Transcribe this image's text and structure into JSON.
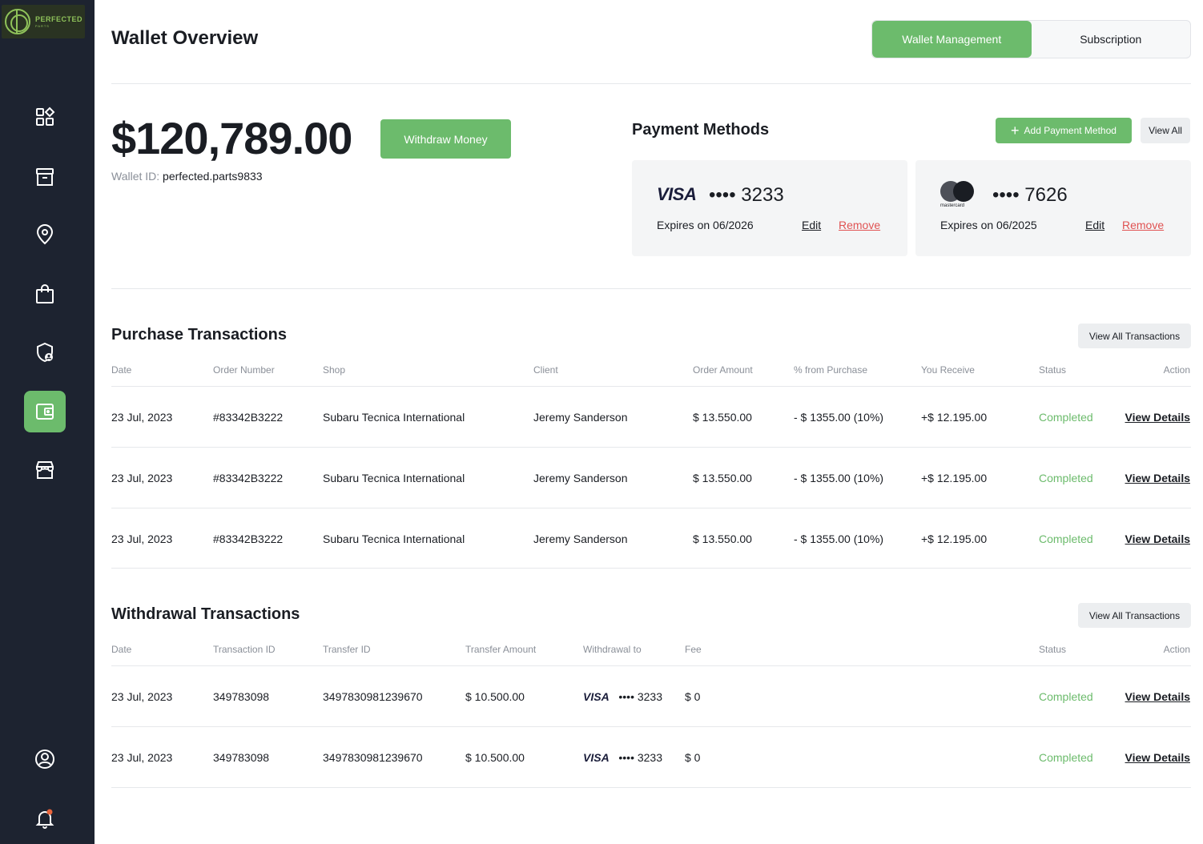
{
  "logo": {
    "line1": "PERFECTED",
    "line2": "PARTS"
  },
  "sidebar": {
    "items": [
      {
        "name": "dashboard",
        "icon": "dashboard-icon"
      },
      {
        "name": "archive",
        "icon": "archive-box-icon"
      },
      {
        "name": "location",
        "icon": "map-pin-icon"
      },
      {
        "name": "orders",
        "icon": "shopping-bag-icon"
      },
      {
        "name": "security",
        "icon": "shield-user-icon"
      },
      {
        "name": "wallet",
        "icon": "wallet-icon",
        "active": true
      },
      {
        "name": "store",
        "icon": "storefront-icon"
      },
      {
        "name": "profile",
        "icon": "user-circle-icon"
      },
      {
        "name": "notifications",
        "icon": "bell-icon"
      }
    ]
  },
  "header": {
    "title": "Wallet Overview",
    "tabs": [
      {
        "label": "Wallet Management",
        "active": true
      },
      {
        "label": "Subscription"
      }
    ]
  },
  "balance": {
    "amount": "$120,789.00",
    "withdraw_label": "Withdraw Money",
    "wallet_id_label": "Wallet ID:",
    "wallet_id": "perfected.parts9833"
  },
  "payment_methods": {
    "title": "Payment Methods",
    "add_label": "Add Payment Method",
    "view_all_label": "View All",
    "cards": [
      {
        "brand": "VISA",
        "number": "•••• 3233",
        "expires": "Expires on 06/2026",
        "edit": "Edit",
        "remove": "Remove"
      },
      {
        "brand": "mastercard",
        "number": "•••• 7626",
        "expires": "Expires on 06/2025",
        "edit": "Edit",
        "remove": "Remove"
      }
    ]
  },
  "purchase": {
    "title": "Purchase Transactions",
    "view_all_label": "View All Transactions",
    "columns": [
      "Date",
      "Order Number",
      "Shop",
      "Client",
      "Order Amount",
      "% from Purchase",
      "You Receive",
      "Status",
      "Action"
    ],
    "rows": [
      [
        "23 Jul, 2023",
        "#83342B3222",
        "Subaru Tecnica International",
        "Jeremy Sanderson",
        "$ 13.550.00",
        "- $ 1355.00 (10%)",
        "+$ 12.195.00",
        "Completed",
        "View Details"
      ],
      [
        "23 Jul, 2023",
        "#83342B3222",
        "Subaru Tecnica International",
        "Jeremy Sanderson",
        "$ 13.550.00",
        "- $ 1355.00 (10%)",
        "+$ 12.195.00",
        "Completed",
        "View Details"
      ],
      [
        "23 Jul, 2023",
        "#83342B3222",
        "Subaru Tecnica International",
        "Jeremy Sanderson",
        "$ 13.550.00",
        "- $ 1355.00 (10%)",
        "+$ 12.195.00",
        "Completed",
        "View Details"
      ]
    ]
  },
  "withdrawal": {
    "title": "Withdrawal Transactions",
    "view_all_label": "View All Transactions",
    "columns": [
      "Date",
      "Transaction ID",
      "Transfer ID",
      "Transfer Amount",
      "Withdrawal to",
      "Fee",
      "Status",
      "Action"
    ],
    "rows": [
      {
        "date": "23 Jul, 2023",
        "txn": "349783098",
        "transfer": "3497830981239670",
        "amount": "$ 10.500.00",
        "card_brand": "VISA",
        "card_num": "•••• 3233",
        "fee": "$ 0",
        "status": "Completed",
        "action": "View Details"
      },
      {
        "date": "23 Jul, 2023",
        "txn": "349783098",
        "transfer": "3497830981239670",
        "amount": "$ 10.500.00",
        "card_brand": "VISA",
        "card_num": "•••• 3233",
        "fee": "$ 0",
        "status": "Completed",
        "action": "View Details"
      }
    ]
  },
  "colors": {
    "accent": "#6cbb6c",
    "sidebar": "#1d2330",
    "danger": "#e05252",
    "notification_dot": "#e8643c"
  }
}
